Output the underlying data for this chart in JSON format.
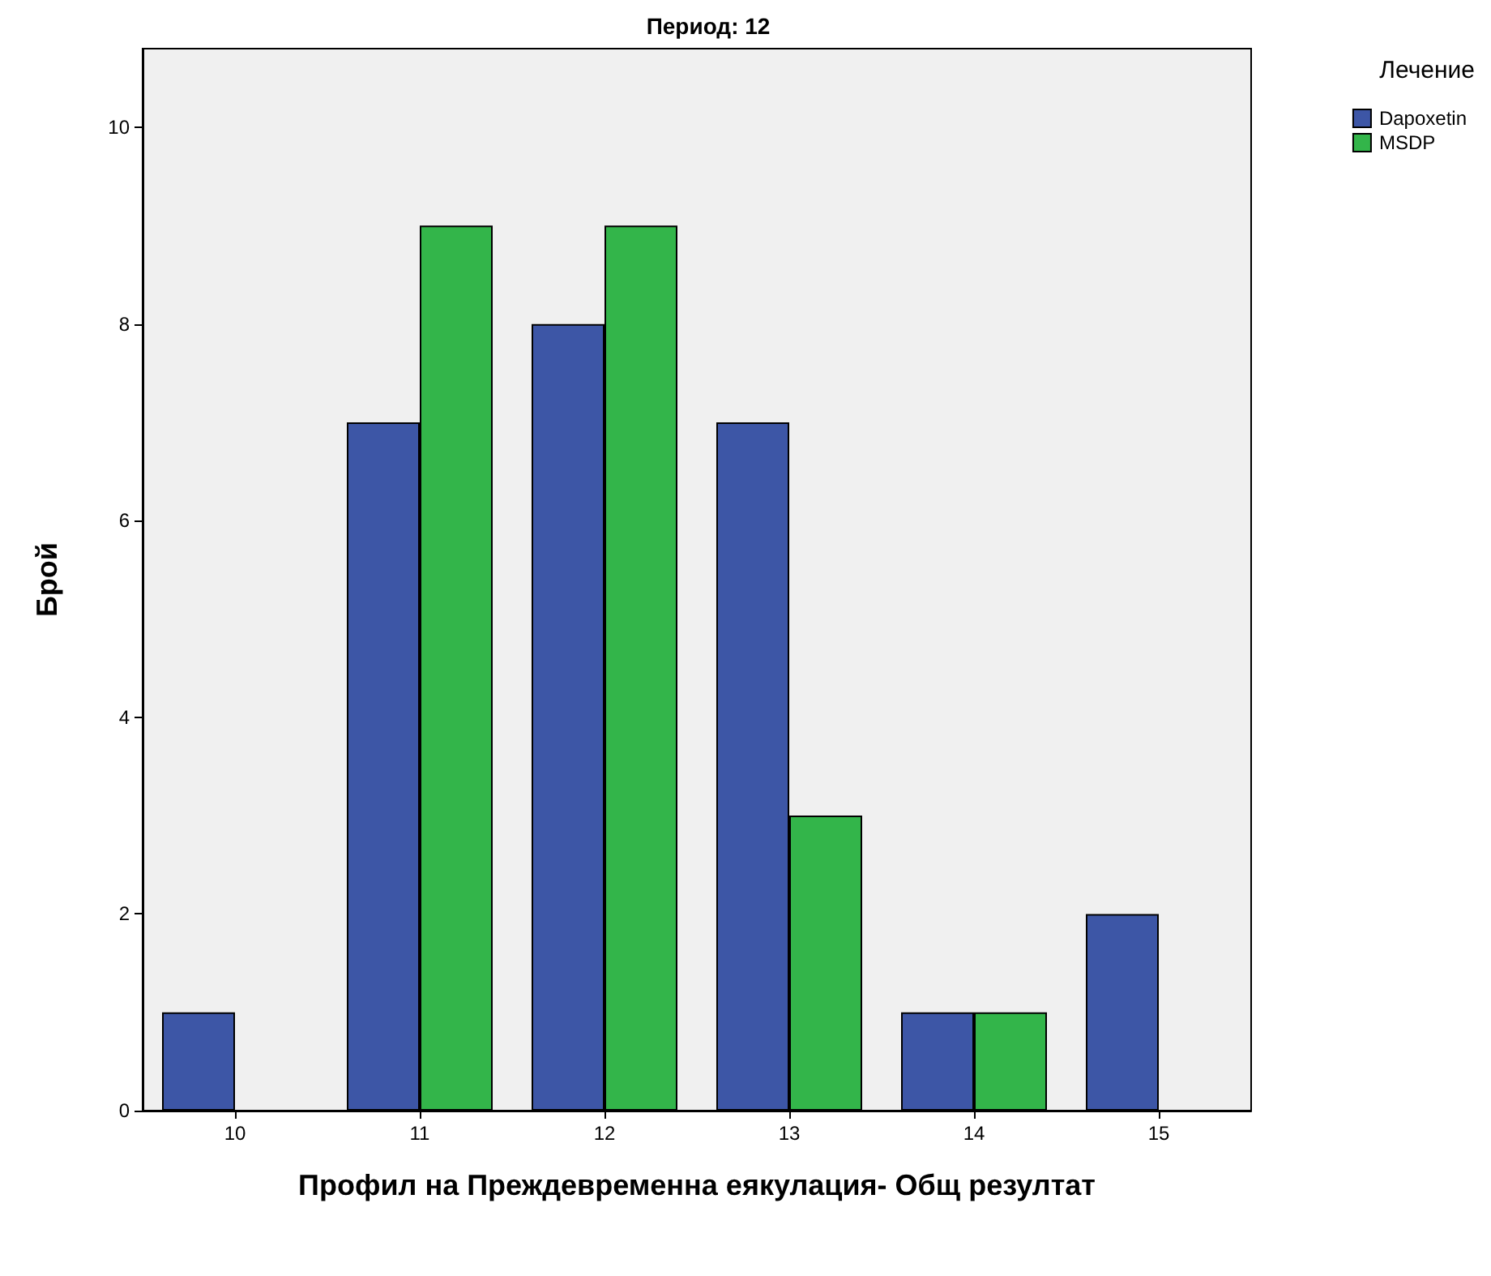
{
  "chart_data": {
    "type": "bar",
    "title": "Период: 12",
    "xlabel": "Профил на Преждевременна еякулация- Общ резултат",
    "ylabel": "Брой",
    "legend_title": "Лечение",
    "categories": [
      "10",
      "11",
      "12",
      "13",
      "14",
      "15"
    ],
    "series": [
      {
        "name": "Dapoxetin",
        "color": "#3d56a6",
        "values": [
          1,
          7,
          8,
          7,
          1,
          2
        ]
      },
      {
        "name": "MSDP",
        "color": "#33b54a",
        "values": [
          null,
          9,
          9,
          3,
          1,
          null
        ]
      }
    ],
    "ylim": [
      0,
      10.8
    ],
    "yticks": [
      0,
      2,
      4,
      6,
      8,
      10
    ],
    "grid": false,
    "legend": "top right"
  }
}
